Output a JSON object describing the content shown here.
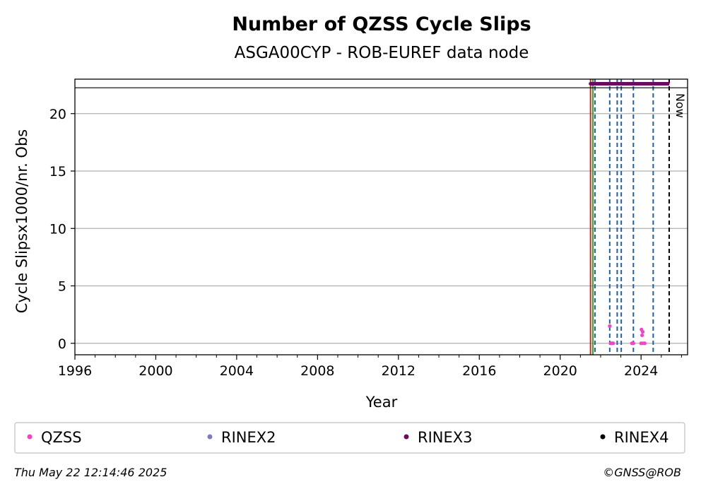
{
  "chart_data": {
    "type": "scatter",
    "title": "Number of QZSS Cycle Slips",
    "subtitle": "ASGA00CYP - ROB-EUREF data node",
    "xlabel": "Year",
    "ylabel": "Cycle Slipsx1000/nr. Obs",
    "xlim": [
      1996,
      2026.3
    ],
    "ylim": [
      -1.0,
      23.0
    ],
    "x_ticks": [
      1996,
      2000,
      2004,
      2008,
      2012,
      2016,
      2020,
      2024
    ],
    "x_tick_labels": [
      "1996",
      "2000",
      "2004",
      "2008",
      "2012",
      "2016",
      "2020",
      "2024"
    ],
    "y_ticks": [
      0,
      5,
      10,
      15,
      20
    ],
    "y_tick_labels": [
      "0",
      "5",
      "10",
      "15",
      "20"
    ],
    "grid": "horizontal",
    "series": [
      {
        "name": "QZSS",
        "color": "#f542c8",
        "points": [
          {
            "x": 2022.45,
            "y": 1.5
          },
          {
            "x": 2022.5,
            "y": 0.0
          },
          {
            "x": 2022.55,
            "y": 0.0
          },
          {
            "x": 2022.62,
            "y": 0.0
          },
          {
            "x": 2023.55,
            "y": 0.0
          },
          {
            "x": 2023.62,
            "y": 0.0
          },
          {
            "x": 2024.02,
            "y": 1.2
          },
          {
            "x": 2024.08,
            "y": 1.0
          },
          {
            "x": 2024.05,
            "y": 0.7
          },
          {
            "x": 2024.0,
            "y": 0.0
          },
          {
            "x": 2024.1,
            "y": 0.0
          },
          {
            "x": 2024.18,
            "y": 0.0
          }
        ]
      },
      {
        "name": "RINEX2",
        "color": "#7b7bbd",
        "points": []
      },
      {
        "name": "RINEX3",
        "color": "#6a0a60",
        "points": [],
        "span": [
          2021.5,
          2025.4
        ]
      },
      {
        "name": "RINEX4",
        "color": "#000000",
        "points": []
      }
    ],
    "vlines": [
      {
        "x": 2021.5,
        "color": "#d62728",
        "style": "solid"
      },
      {
        "x": 2021.62,
        "color": "#2ca02c",
        "style": "solid"
      },
      {
        "x": 2021.72,
        "color": "#1f5fa8",
        "style": "dashed"
      },
      {
        "x": 2022.45,
        "color": "#1f5fa8",
        "style": "dashed"
      },
      {
        "x": 2022.82,
        "color": "#1f5fa8",
        "style": "dashed"
      },
      {
        "x": 2023.02,
        "color": "#1f5fa8",
        "style": "dashed"
      },
      {
        "x": 2023.62,
        "color": "#1f5fa8",
        "style": "dashed"
      },
      {
        "x": 2024.6,
        "color": "#1f5fa8",
        "style": "dashed"
      },
      {
        "x": 2025.39,
        "color": "#000000",
        "style": "dashed"
      }
    ],
    "now_label": "Now",
    "legend": {
      "placement": "bottom",
      "entries": [
        "QZSS",
        "RINEX2",
        "RINEX3",
        "RINEX4"
      ]
    }
  },
  "footer": {
    "timestamp": "Thu May 22 12:14:46 2025",
    "credit": "©GNSS@ROB"
  }
}
